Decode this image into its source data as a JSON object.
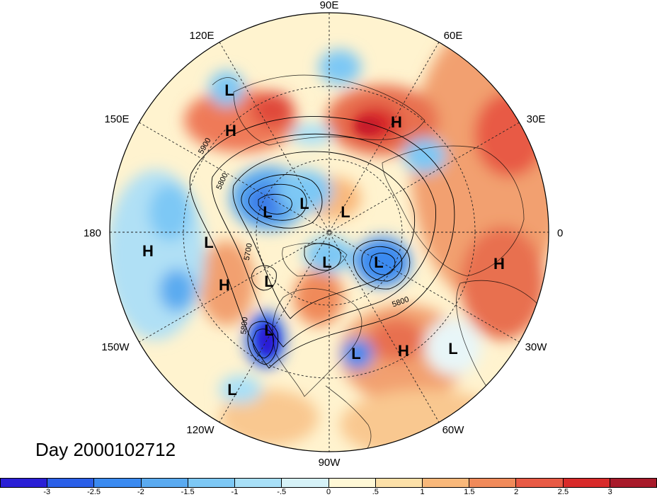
{
  "title": "Day 2000102712",
  "longitude_labels": [
    {
      "text": "90E"
    },
    {
      "text": "60E"
    },
    {
      "text": "30E"
    },
    {
      "text": "0"
    },
    {
      "text": "30W"
    },
    {
      "text": "60W"
    },
    {
      "text": "90W"
    },
    {
      "text": "120W"
    },
    {
      "text": "150W"
    },
    {
      "text": "180"
    },
    {
      "text": "150E"
    },
    {
      "text": "120E"
    }
  ],
  "pressure_centers": [
    {
      "type": "L",
      "region": "East Asia coast"
    },
    {
      "type": "H",
      "region": "Northeast Asia"
    },
    {
      "type": "H",
      "region": "Central Siberia"
    },
    {
      "type": "H",
      "region": "Central North Pacific"
    },
    {
      "type": "L",
      "region": "West North Pacific"
    },
    {
      "type": "L",
      "region": "Beaufort / Arctic"
    },
    {
      "type": "L",
      "region": "Kara Sea"
    },
    {
      "type": "L",
      "region": "Laptev Sea"
    },
    {
      "type": "H",
      "region": "Gulf of Alaska"
    },
    {
      "type": "L",
      "region": "Alaska"
    },
    {
      "type": "L",
      "region": "Greenland Sea"
    },
    {
      "type": "L",
      "region": "Canadian Arctic"
    },
    {
      "type": "H",
      "region": "Northwest Africa"
    },
    {
      "type": "L",
      "region": "Hudson Bay"
    },
    {
      "type": "L",
      "region": "North Atlantic"
    },
    {
      "type": "H",
      "region": "Central Atlantic"
    },
    {
      "type": "L",
      "region": "Florida / Atlantic coast"
    },
    {
      "type": "L",
      "region": "East Pacific subtropics"
    }
  ],
  "contour_labels": [
    {
      "text": "5900"
    },
    {
      "text": "5800"
    },
    {
      "text": "5700"
    },
    {
      "text": "5800"
    },
    {
      "text": "5800"
    }
  ],
  "colorbar": {
    "colors": [
      "#2a1fd6",
      "#2a5fe8",
      "#3a8af0",
      "#5aaaf0",
      "#7dc8f5",
      "#a8e0f8",
      "#d6f2f8",
      "#fff8d6",
      "#fce0a8",
      "#f9b87a",
      "#f08a5a",
      "#e85a45",
      "#d82a2a",
      "#a81a2a"
    ],
    "tick_labels": [
      "-3",
      "-2.5",
      "-2",
      "-1.5",
      "-1",
      "-.5",
      "0",
      ".5",
      "1",
      "1.5",
      "2",
      "2.5",
      "3"
    ]
  }
}
